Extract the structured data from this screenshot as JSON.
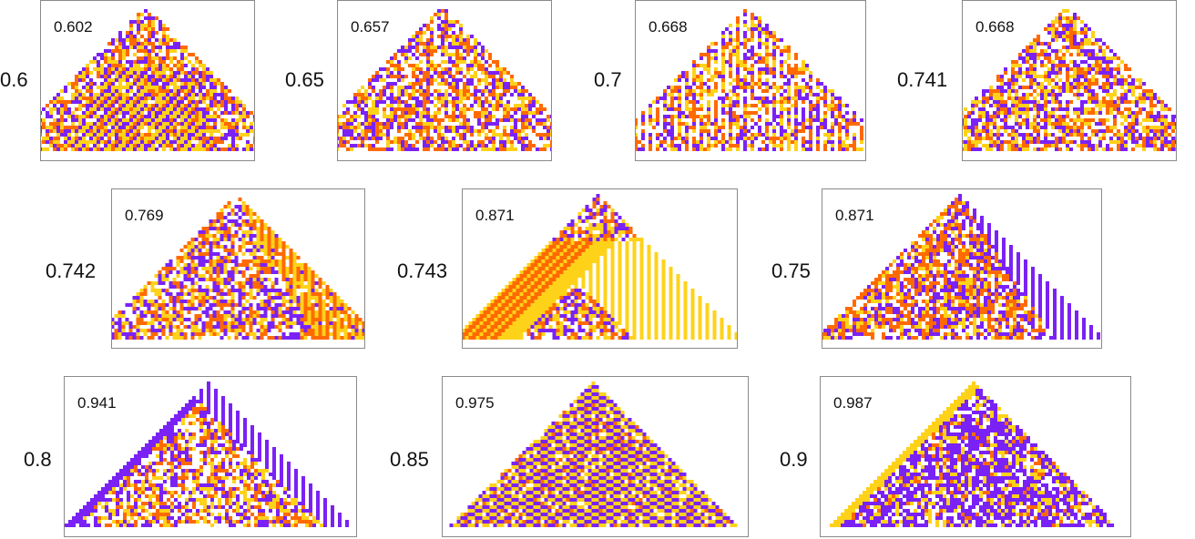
{
  "palette": {
    "empty": "#ffffff",
    "purple": "#7a22f5",
    "orange": "#ff6a00",
    "yellow": "#ffd21a"
  },
  "panels": [
    {
      "id": "p1",
      "side_label": "0.6",
      "value": "0.602",
      "seed": 11,
      "style": "stripes"
    },
    {
      "id": "p2",
      "side_label": "0.65",
      "value": "0.657",
      "seed": 23,
      "style": "noise"
    },
    {
      "id": "p3",
      "side_label": "0.7",
      "value": "0.668",
      "seed": 37,
      "style": "checker"
    },
    {
      "id": "p4",
      "side_label": "0.741",
      "value": "0.668",
      "seed": 41,
      "style": "noise"
    },
    {
      "id": "p5",
      "side_label": "0.742",
      "value": "0.769",
      "seed": 53,
      "style": "yellow-right"
    },
    {
      "id": "p6",
      "side_label": "0.743",
      "value": "0.871",
      "seed": 67,
      "style": "both-edges"
    },
    {
      "id": "p7",
      "side_label": "0.75",
      "value": "0.871",
      "seed": 71,
      "style": "purple-right"
    },
    {
      "id": "p8",
      "side_label": "0.8",
      "value": "0.941",
      "seed": 83,
      "style": "purple-right-thin"
    },
    {
      "id": "p9",
      "side_label": "0.85",
      "value": "0.975",
      "seed": 97,
      "style": "diagonal"
    },
    {
      "id": "p10",
      "side_label": "0.9",
      "value": "0.987",
      "seed": 101,
      "style": "purple-dense"
    }
  ]
}
